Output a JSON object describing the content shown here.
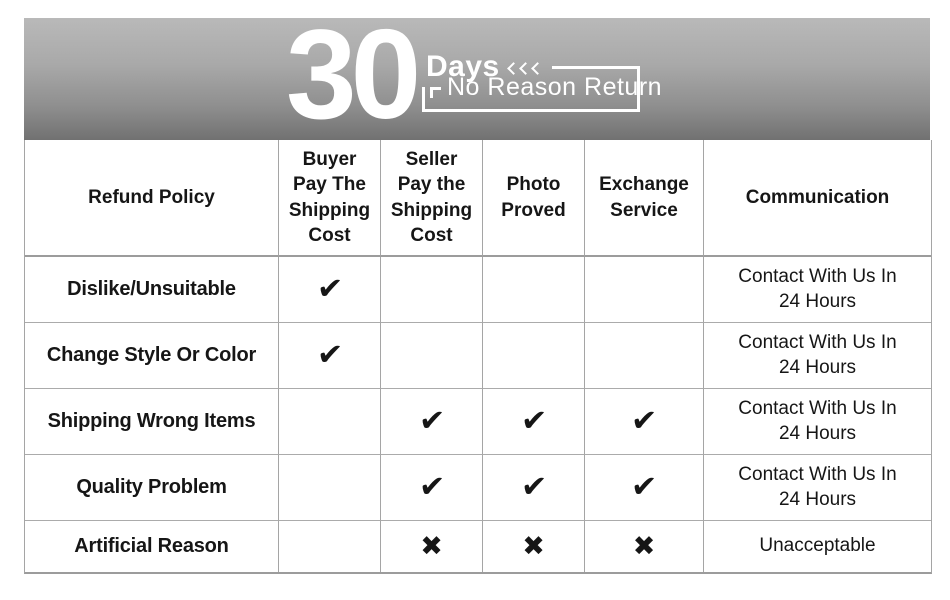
{
  "banner": {
    "number": "30",
    "days_label": "Days",
    "chevrons_icon": "⟨⟨⟨",
    "subtitle": "No Reason Return",
    "background_top": "#b9b9b9",
    "background_bottom": "#717171",
    "text_color": "#ffffff"
  },
  "table": {
    "border_color": "#a5a5a5",
    "header": {
      "policy": "Refund Policy",
      "buyer": "Buyer\nPay The\nShipping\nCost",
      "seller": "Seller\nPay the\nShipping\nCost",
      "photo": "Photo\nProved",
      "exchange": "Exchange\nService",
      "communication": "Communication"
    },
    "marks": {
      "check": "✔",
      "cross": "✖"
    },
    "rows": [
      {
        "policy": "Dislike/Unsuitable",
        "buyer": "✔",
        "seller": "",
        "photo": "",
        "exchange": "",
        "communication": "Contact With Us In\n24 Hours"
      },
      {
        "policy": "Change Style Or Color",
        "buyer": "✔",
        "seller": "",
        "photo": "",
        "exchange": "",
        "communication": "Contact With Us In\n24 Hours"
      },
      {
        "policy": "Shipping Wrong Items",
        "buyer": "",
        "seller": "✔",
        "photo": "✔",
        "exchange": "✔",
        "communication": "Contact With Us In\n24 Hours"
      },
      {
        "policy": "Quality Problem",
        "buyer": "",
        "seller": "✔",
        "photo": "✔",
        "exchange": "✔",
        "communication": "Contact With Us In\n24 Hours"
      },
      {
        "policy": "Artificial Reason",
        "buyer": "",
        "seller": "✖",
        "photo": "✖",
        "exchange": "✖",
        "communication": "Unacceptable"
      }
    ]
  },
  "chart_data": {
    "type": "table",
    "title": "30 Days No Reason Return",
    "columns": [
      "Refund Policy",
      "Buyer Pay The Shipping Cost",
      "Seller Pay the Shipping Cost",
      "Photo Proved",
      "Exchange Service",
      "Communication"
    ],
    "rows": [
      [
        "Dislike/Unsuitable",
        "✔",
        "",
        "",
        "",
        "Contact With Us In 24 Hours"
      ],
      [
        "Change Style Or Color",
        "✔",
        "",
        "",
        "",
        "Contact With Us In 24 Hours"
      ],
      [
        "Shipping Wrong Items",
        "",
        "✔",
        "✔",
        "✔",
        "Contact With Us In 24 Hours"
      ],
      [
        "Quality Problem",
        "",
        "✔",
        "✔",
        "✔",
        "Contact With Us In 24 Hours"
      ],
      [
        "Artificial Reason",
        "",
        "✖",
        "✖",
        "✖",
        "Unacceptable"
      ]
    ]
  }
}
